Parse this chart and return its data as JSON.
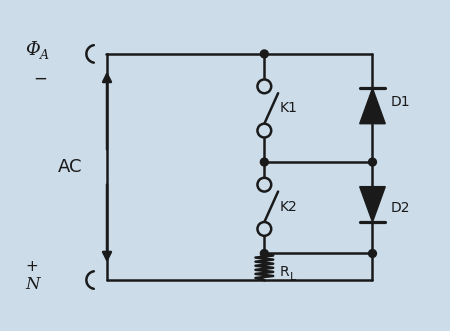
{
  "bg_color": "#ccdce8",
  "line_color": "#1a1a1a",
  "line_width": 1.8,
  "phi_a_label": "Φ",
  "phi_a_sub": "A",
  "minus_label": "−",
  "plus_label": "+",
  "N_label": "N",
  "AC_label": "AC",
  "K1_label": "K1",
  "K2_label": "K2",
  "D1_label": "D1",
  "D2_label": "D2",
  "RL_label": "R",
  "RL_sub": "L"
}
